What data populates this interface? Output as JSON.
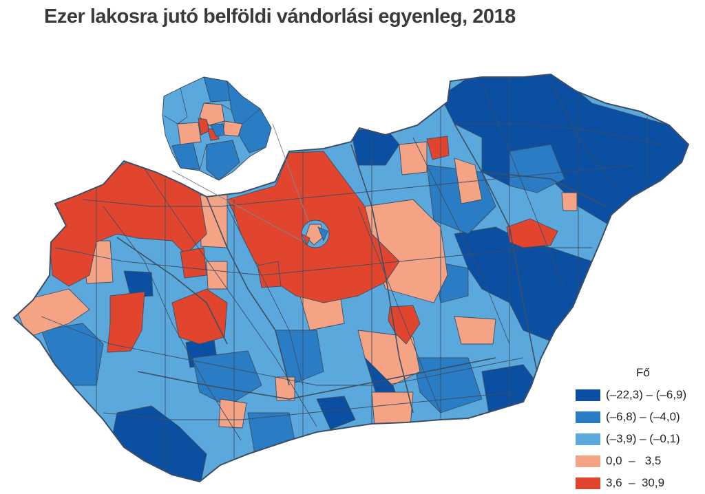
{
  "title": "Ezer lakosra jutó belföldi vándorlási egyenleg, 2018",
  "legend": {
    "title": "Fő",
    "items": [
      {
        "label": "(–22,3) – (–6,9)",
        "color": "#0b4fa3"
      },
      {
        "label": "(–6,8) – (–4,0)",
        "color": "#2a7cc4"
      },
      {
        "label": "(–3,9) – (–0,1)",
        "color": "#5aa8dc"
      },
      {
        "label": "0,0  –   3,5",
        "color": "#f4a484"
      },
      {
        "label": "3,6  –  30,9",
        "color": "#e2452e"
      }
    ]
  },
  "colors": {
    "border": "#3c4e63",
    "class1": "#0b4fa3",
    "class2": "#2a7cc4",
    "class3": "#5aa8dc",
    "class4": "#f4a484",
    "class5": "#e2452e"
  }
}
